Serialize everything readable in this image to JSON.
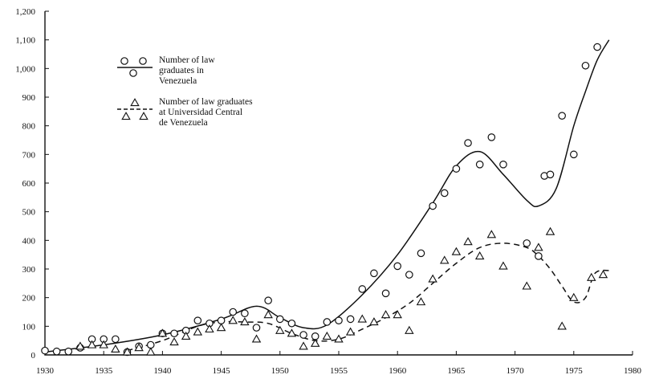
{
  "chart_data": {
    "type": "scatter",
    "title": "",
    "xlabel": "",
    "ylabel": "",
    "xlim": [
      1930,
      1980
    ],
    "ylim": [
      0,
      1200
    ],
    "x_ticks": [
      "1930",
      "1935",
      "1940",
      "1945",
      "1950",
      "1955",
      "1960",
      "1965",
      "1970",
      "1975",
      "1980"
    ],
    "y_ticks": [
      "0",
      "100",
      "200",
      "300",
      "400",
      "500",
      "600",
      "700",
      "800",
      "900",
      "1,000",
      "1,100",
      "1,200"
    ],
    "grid": false,
    "legend_position": "top-left",
    "series": [
      {
        "name": "Number of law graduates in Venezuela",
        "marker": "circle",
        "points": [
          [
            1930,
            15
          ],
          [
            1931,
            12
          ],
          [
            1932,
            12
          ],
          [
            1933,
            25
          ],
          [
            1934,
            55
          ],
          [
            1935,
            55
          ],
          [
            1936,
            55
          ],
          [
            1937,
            10
          ],
          [
            1938,
            30
          ],
          [
            1939,
            35
          ],
          [
            1940,
            75
          ],
          [
            1941,
            75
          ],
          [
            1942,
            85
          ],
          [
            1943,
            120
          ],
          [
            1944,
            110
          ],
          [
            1945,
            120
          ],
          [
            1946,
            150
          ],
          [
            1947,
            145
          ],
          [
            1948,
            95
          ],
          [
            1949,
            190
          ],
          [
            1950,
            125
          ],
          [
            1951,
            110
          ],
          [
            1952,
            70
          ],
          [
            1953,
            65
          ],
          [
            1954,
            115
          ],
          [
            1955,
            120
          ],
          [
            1956,
            125
          ],
          [
            1957,
            230
          ],
          [
            1958,
            285
          ],
          [
            1959,
            215
          ],
          [
            1960,
            310
          ],
          [
            1961,
            280
          ],
          [
            1962,
            355
          ],
          [
            1963,
            520
          ],
          [
            1964,
            565
          ],
          [
            1965,
            650
          ],
          [
            1966,
            740
          ],
          [
            1967,
            665
          ],
          [
            1968,
            760
          ],
          [
            1969,
            665
          ],
          [
            1971,
            390
          ],
          [
            1972,
            345
          ],
          [
            1972.5,
            625
          ],
          [
            1973,
            630
          ],
          [
            1974,
            835
          ],
          [
            1975,
            700
          ],
          [
            1976,
            1010
          ],
          [
            1977,
            1075
          ]
        ],
        "fit_line": {
          "style": "solid",
          "points": [
            [
              1930,
              10
            ],
            [
              1935,
              35
            ],
            [
              1940,
              70
            ],
            [
              1945,
              125
            ],
            [
              1948,
              170
            ],
            [
              1950,
              130
            ],
            [
              1952,
              95
            ],
            [
              1954,
              105
            ],
            [
              1957,
              210
            ],
            [
              1960,
              350
            ],
            [
              1963,
              530
            ],
            [
              1965,
              660
            ],
            [
              1967,
              710
            ],
            [
              1969,
              630
            ],
            [
              1971,
              540
            ],
            [
              1972,
              520
            ],
            [
              1973.5,
              580
            ],
            [
              1975,
              800
            ],
            [
              1976,
              920
            ],
            [
              1977,
              1030
            ],
            [
              1978,
              1100
            ]
          ]
        }
      },
      {
        "name": "Number of law graduates at Universidad Central de Venezuela",
        "marker": "triangle",
        "points": [
          [
            1933,
            30
          ],
          [
            1934,
            35
          ],
          [
            1935,
            35
          ],
          [
            1936,
            20
          ],
          [
            1937,
            10
          ],
          [
            1938,
            25
          ],
          [
            1939,
            10
          ],
          [
            1940,
            75
          ],
          [
            1941,
            45
          ],
          [
            1942,
            65
          ],
          [
            1943,
            80
          ],
          [
            1944,
            90
          ],
          [
            1945,
            95
          ],
          [
            1946,
            120
          ],
          [
            1947,
            115
          ],
          [
            1948,
            55
          ],
          [
            1949,
            140
          ],
          [
            1950,
            85
          ],
          [
            1951,
            75
          ],
          [
            1952,
            30
          ],
          [
            1953,
            40
          ],
          [
            1954,
            65
          ],
          [
            1955,
            55
          ],
          [
            1956,
            80
          ],
          [
            1957,
            125
          ],
          [
            1958,
            115
          ],
          [
            1959,
            140
          ],
          [
            1960,
            140
          ],
          [
            1961,
            85
          ],
          [
            1962,
            185
          ],
          [
            1963,
            265
          ],
          [
            1964,
            330
          ],
          [
            1965,
            360
          ],
          [
            1966,
            395
          ],
          [
            1967,
            345
          ],
          [
            1968,
            420
          ],
          [
            1969,
            310
          ],
          [
            1971,
            240
          ],
          [
            1972,
            375
          ],
          [
            1973,
            430
          ],
          [
            1974,
            100
          ],
          [
            1975,
            200
          ],
          [
            1976.5,
            270
          ],
          [
            1977.5,
            280
          ]
        ],
        "fit_line": {
          "style": "dashed",
          "points": [
            [
              1937,
              15
            ],
            [
              1940,
              50
            ],
            [
              1943,
              100
            ],
            [
              1945,
              115
            ],
            [
              1947,
              115
            ],
            [
              1949,
              110
            ],
            [
              1951,
              75
            ],
            [
              1953,
              50
            ],
            [
              1955,
              55
            ],
            [
              1957,
              90
            ],
            [
              1959,
              130
            ],
            [
              1961,
              180
            ],
            [
              1963,
              250
            ],
            [
              1965,
              320
            ],
            [
              1967,
              375
            ],
            [
              1969,
              390
            ],
            [
              1971,
              375
            ],
            [
              1972,
              345
            ],
            [
              1973,
              300
            ],
            [
              1974,
              240
            ],
            [
              1975,
              185
            ],
            [
              1976,
              200
            ],
            [
              1976.8,
              285
            ],
            [
              1978,
              295
            ]
          ]
        }
      }
    ]
  },
  "legend": {
    "items": [
      {
        "lines": [
          "Number of law",
          "graduates in",
          "Venezuela"
        ]
      },
      {
        "lines": [
          "Number of law graduates",
          "at Universidad Central",
          "de Venezuela"
        ]
      }
    ]
  }
}
